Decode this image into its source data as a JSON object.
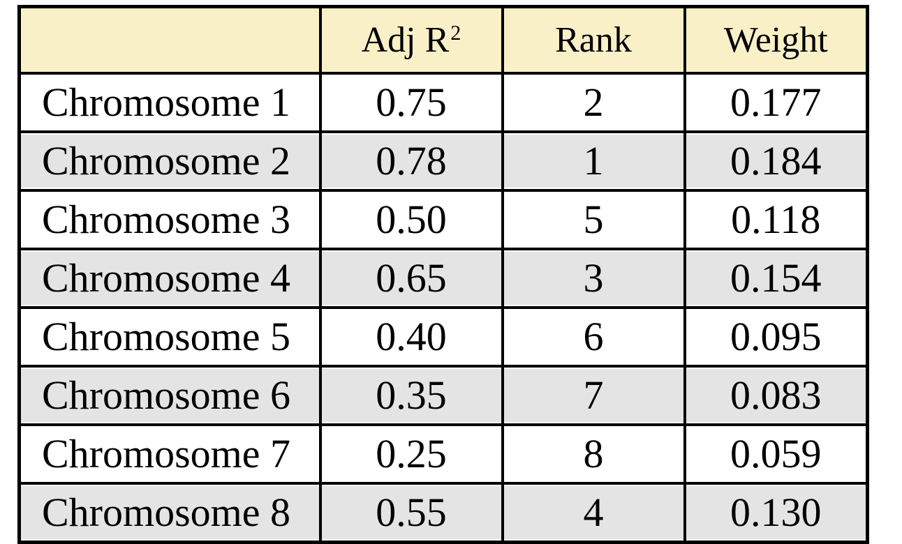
{
  "colors": {
    "header_bg": "#FAF0C8",
    "alt_row_bg": "#E4E4E4",
    "row_bg": "#FFFFFF",
    "grid_border": "#000000",
    "text": "#000000"
  },
  "chart_data": {
    "type": "table",
    "columns": [
      "",
      "Adj R²",
      "Rank",
      "Weight"
    ],
    "header": {
      "blank": "",
      "adj_r2_base": "Adj R",
      "adj_r2_sup": "2",
      "rank": "Rank",
      "weight": "Weight"
    },
    "rows": [
      {
        "label": "Chromosome 1",
        "adj_r2": "0.75",
        "rank": "2",
        "weight": "0.177"
      },
      {
        "label": "Chromosome 2",
        "adj_r2": "0.78",
        "rank": "1",
        "weight": "0.184"
      },
      {
        "label": "Chromosome 3",
        "adj_r2": "0.50",
        "rank": "5",
        "weight": "0.118"
      },
      {
        "label": "Chromosome 4",
        "adj_r2": "0.65",
        "rank": "3",
        "weight": "0.154"
      },
      {
        "label": "Chromosome 5",
        "adj_r2": "0.40",
        "rank": "6",
        "weight": "0.095"
      },
      {
        "label": "Chromosome 6",
        "adj_r2": "0.35",
        "rank": "7",
        "weight": "0.083"
      },
      {
        "label": "Chromosome 7",
        "adj_r2": "0.25",
        "rank": "8",
        "weight": "0.059"
      },
      {
        "label": "Chromosome 8",
        "adj_r2": "0.55",
        "rank": "4",
        "weight": "0.130"
      }
    ]
  }
}
